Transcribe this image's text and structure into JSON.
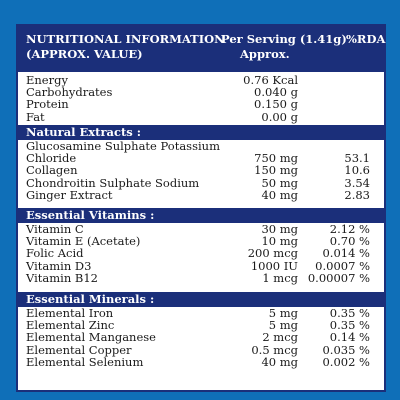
{
  "header": {
    "title_line1": "NUTRITIONAL INFORMATION",
    "title_line2": "(APPROX. VALUE)",
    "serving_line1": "Per Serving (1.41g)",
    "serving_line2": "Approx.",
    "rda": "%RDA"
  },
  "basic": [
    {
      "name": "Energy",
      "qty": "0.76 Kcal",
      "rda": ""
    },
    {
      "name": "Carbohydrates",
      "qty": "0.040 g",
      "rda": ""
    },
    {
      "name": "Protein",
      "qty": "0.150 g",
      "rda": ""
    },
    {
      "name": "Fat",
      "qty": "0.00 g",
      "rda": ""
    }
  ],
  "natural": {
    "title": "Natural Extracts :",
    "items": [
      {
        "name1": "Glucosamine Sulphate Potassium",
        "name2": "Chloride",
        "qty": "750 mg",
        "rda": "53.1"
      },
      {
        "name": "Collagen",
        "qty": "150 mg",
        "rda": "10.6"
      },
      {
        "name": "Chondroitin Sulphate Sodium",
        "qty": "50 mg",
        "rda": "3.54"
      },
      {
        "name": "Ginger Extract",
        "qty": "40 mg",
        "rda": "2.83"
      }
    ]
  },
  "vitamins": {
    "title": "Essential Vitamins :",
    "items": [
      {
        "name": "Vitamin C",
        "qty": "30 mg",
        "rda": "2.12 %"
      },
      {
        "name": "Vitamin E (Acetate)",
        "qty": "10 mg",
        "rda": "0.70 %"
      },
      {
        "name": "Folic Acid",
        "qty": "200 mcg",
        "rda": "0.014 %"
      },
      {
        "name": "Vitamin D3",
        "qty": "1000 IU",
        "rda": "0.0007 %"
      },
      {
        "name": "Vitamin B12",
        "qty": "1 mcg",
        "rda": "0.00007 %"
      }
    ]
  },
  "minerals": {
    "title": "Essential Minerals :",
    "items": [
      {
        "name": "Elemental Iron",
        "qty": "5 mg",
        "rda": "0.35 %"
      },
      {
        "name": "Elemental Zinc",
        "qty": "5 mg",
        "rda": "0.35 %"
      },
      {
        "name": "Elemental Manganese",
        "qty": "2 mcg",
        "rda": "0.14 %"
      },
      {
        "name": "Elemental Copper",
        "qty": "0.5 mcg",
        "rda": "0.035 %"
      },
      {
        "name": "Elemental Selenium",
        "qty": "40 mg",
        "rda": "0.002 %"
      }
    ]
  }
}
